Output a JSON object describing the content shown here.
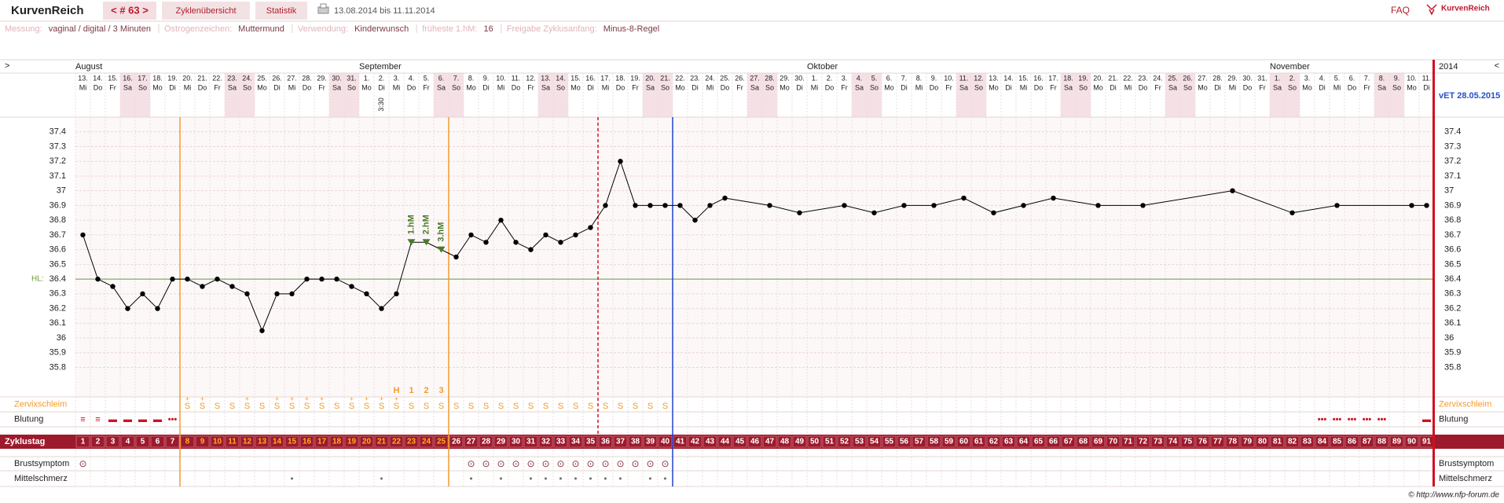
{
  "header": {
    "brand": "KurvenReich",
    "cycle_nav": "< # 63 >",
    "tabs": [
      "Zyklenübersicht",
      "Statistik"
    ],
    "date_range": "13.08.2014 bis 11.11.2014",
    "faq": "FAQ",
    "logo": "KurvenReich"
  },
  "info": [
    {
      "label": "Messung:",
      "value": "vaginal / digital / 3 Minuten"
    },
    {
      "label": "Östrogenzeichen:",
      "value": "Muttermund"
    },
    {
      "label": "Verwendung:",
      "value": "Kinderwunsch"
    },
    {
      "label": "früheste 1.hM:",
      "value": "16"
    },
    {
      "label": "Freigabe Zyklusanfang:",
      "value": "Minus-8-Regel"
    }
  ],
  "chart_data": {
    "type": "line",
    "nav_prev": ">",
    "nav_next": "<",
    "year": "2014",
    "due_date": "vET 28.05.2015",
    "months": [
      {
        "label": "August",
        "day": 1
      },
      {
        "label": "September",
        "day": 20
      },
      {
        "label": "Oktober",
        "day": 50
      },
      {
        "label": "November",
        "day": 81
      }
    ],
    "dates": [
      "13.",
      "14.",
      "15.",
      "16.",
      "17.",
      "18.",
      "19.",
      "20.",
      "21.",
      "22.",
      "23.",
      "24.",
      "25.",
      "26.",
      "27.",
      "28.",
      "29.",
      "30.",
      "31.",
      "1.",
      "2.",
      "3.",
      "4.",
      "5.",
      "6.",
      "7.",
      "8.",
      "9.",
      "10.",
      "11.",
      "12.",
      "13.",
      "14.",
      "15.",
      "16.",
      "17.",
      "18.",
      "19.",
      "20.",
      "21.",
      "22.",
      "23.",
      "24.",
      "25.",
      "26.",
      "27.",
      "28.",
      "29.",
      "30.",
      "1.",
      "2.",
      "3.",
      "4.",
      "5.",
      "6.",
      "7.",
      "8.",
      "9.",
      "10.",
      "11.",
      "12.",
      "13.",
      "14.",
      "15.",
      "16.",
      "17.",
      "18.",
      "19.",
      "20.",
      "21.",
      "22.",
      "23.",
      "24.",
      "25.",
      "26.",
      "27.",
      "28.",
      "29.",
      "30.",
      "31.",
      "1.",
      "2.",
      "3.",
      "4.",
      "5.",
      "6.",
      "7.",
      "8.",
      "9.",
      "10.",
      "11."
    ],
    "weekdays": [
      "Mi",
      "Do",
      "Fr",
      "Sa",
      "So",
      "Mo",
      "Di",
      "Mi",
      "Do",
      "Fr",
      "Sa",
      "So",
      "Mo",
      "Di",
      "Mi",
      "Do",
      "Fr",
      "Sa",
      "So",
      "Mo",
      "Di",
      "Mi",
      "Do",
      "Fr",
      "Sa",
      "So",
      "Mo",
      "Di",
      "Mi",
      "Do",
      "Fr",
      "Sa",
      "So",
      "Mo",
      "Di",
      "Mi",
      "Do",
      "Fr",
      "Sa",
      "So",
      "Mo",
      "Di",
      "Mi",
      "Do",
      "Fr",
      "Sa",
      "So",
      "Mo",
      "Di",
      "Mi",
      "Do",
      "Fr",
      "Sa",
      "So",
      "Mo",
      "Di",
      "Mi",
      "Do",
      "Fr",
      "Sa",
      "So",
      "Mo",
      "Di",
      "Mi",
      "Do",
      "Fr",
      "Sa",
      "So",
      "Mo",
      "Di",
      "Mi",
      "Do",
      "Fr",
      "Sa",
      "So",
      "Mo",
      "Di",
      "Mi",
      "Do",
      "Fr",
      "Sa",
      "So",
      "Mo",
      "Di",
      "Mi",
      "Do",
      "Fr",
      "Sa",
      "So",
      "Mo",
      "Di"
    ],
    "weekend_days": [
      4,
      5,
      11,
      12,
      18,
      19,
      25,
      26,
      32,
      33,
      39,
      40,
      46,
      47,
      53,
      54,
      60,
      61,
      67,
      68,
      74,
      75,
      81,
      82,
      88,
      89
    ],
    "time_notes": [
      {
        "day": 21,
        "label": "3:30"
      }
    ],
    "ylim": [
      35.6,
      37.5
    ],
    "yticks": [
      35.8,
      35.9,
      36,
      36.1,
      36.2,
      36.3,
      36.4,
      36.5,
      36.6,
      36.7,
      36.8,
      36.9,
      37,
      37.1,
      37.2,
      37.3,
      37.4
    ],
    "grid": true,
    "temperature": {
      "color": "#000000",
      "x": [
        1,
        2,
        3,
        4,
        5,
        6,
        7,
        8,
        9,
        10,
        11,
        12,
        13,
        14,
        15,
        16,
        17,
        18,
        19,
        20,
        21,
        22,
        23,
        24,
        25,
        26,
        27,
        28,
        29,
        30,
        31,
        32,
        33,
        34,
        35,
        36,
        37,
        38,
        39,
        40,
        41,
        42,
        43,
        44,
        47,
        49,
        52,
        54,
        56,
        58,
        60,
        62,
        64,
        66,
        69,
        72,
        78,
        82,
        85,
        90,
        91
      ],
      "values": [
        36.7,
        36.4,
        36.35,
        36.2,
        36.3,
        36.2,
        36.4,
        36.4,
        36.35,
        36.4,
        36.35,
        36.3,
        36.05,
        36.3,
        36.3,
        36.4,
        36.4,
        36.4,
        36.35,
        36.3,
        36.2,
        36.3,
        36.65,
        36.65,
        36.6,
        36.55,
        36.7,
        36.65,
        36.8,
        36.65,
        36.6,
        36.7,
        36.65,
        36.7,
        36.75,
        36.9,
        37.2,
        36.9,
        36.9,
        36.9,
        36.9,
        36.8,
        36.9,
        36.95,
        36.9,
        36.85,
        36.9,
        36.85,
        36.9,
        36.9,
        36.95,
        36.85,
        36.9,
        36.95,
        36.9,
        36.9,
        37.0,
        36.85,
        36.9,
        36.9,
        36.9
      ]
    },
    "cover_line": {
      "label": "HL:",
      "value": 36.4,
      "color": "#6a9a3a"
    },
    "high_measurements": [
      {
        "day": 23,
        "label": "1.hM"
      },
      {
        "day": 24,
        "label": "2.hM"
      },
      {
        "day": 25,
        "label": "3.hM"
      }
    ],
    "peak_labels": [
      {
        "day": 22,
        "label": "H"
      },
      {
        "day": 23,
        "label": "1"
      },
      {
        "day": 24,
        "label": "2"
      },
      {
        "day": 25,
        "label": "3"
      }
    ],
    "fertile_start_day": 8,
    "fertile_end_day": 25,
    "evaluation_day": 35,
    "today_day": 40,
    "rows": {
      "cervix": {
        "label": "Zervixschleim",
        "days": [
          8,
          9,
          10,
          11,
          12,
          13,
          14,
          15,
          16,
          17,
          18,
          19,
          20,
          21,
          22,
          23,
          24,
          25,
          26,
          27,
          28,
          29,
          30,
          31,
          32,
          33,
          34,
          35,
          36,
          37,
          38,
          39,
          40
        ],
        "letters": [
          "S",
          "S",
          "S",
          "S",
          "S",
          "S",
          "S",
          "S",
          "S",
          "S",
          "S",
          "S",
          "S",
          "S",
          "S",
          "S",
          "S",
          "S",
          "S",
          "S",
          "S",
          "S",
          "S",
          "S",
          "S",
          "S",
          "S",
          "S",
          "S",
          "S",
          "S",
          "S",
          "S"
        ],
        "signs": [
          "+",
          "+",
          null,
          null,
          "+",
          null,
          "+",
          "+",
          "+",
          "+",
          null,
          "+",
          "+",
          "+",
          "+",
          null,
          null,
          null,
          null,
          null,
          null,
          null,
          null,
          null,
          null,
          null,
          null,
          null,
          null,
          null,
          null,
          null,
          null
        ]
      },
      "bleeding": {
        "label": "Blutung",
        "days": [
          1,
          2,
          3,
          4,
          5,
          6,
          7,
          84,
          85,
          86,
          87,
          88,
          91
        ],
        "symbols": [
          "≡",
          "≡",
          "▬",
          "▬",
          "▬",
          "▬",
          "•••",
          "•••",
          "•••",
          "•••",
          "•••",
          "•••",
          "▬"
        ]
      },
      "cycle_day": {
        "label": "Zyklustag",
        "values": [
          1,
          2,
          3,
          4,
          5,
          6,
          7,
          8,
          9,
          10,
          11,
          12,
          13,
          14,
          15,
          16,
          17,
          18,
          19,
          20,
          21,
          22,
          23,
          24,
          25,
          26,
          27,
          28,
          29,
          30,
          31,
          32,
          33,
          34,
          35,
          36,
          37,
          38,
          39,
          40,
          41,
          42,
          43,
          44,
          45,
          46,
          47,
          48,
          49,
          50,
          51,
          52,
          53,
          54,
          55,
          56,
          57,
          58,
          59,
          60,
          61,
          62,
          63,
          64,
          65,
          66,
          67,
          68,
          69,
          70,
          71,
          72,
          73,
          74,
          75,
          76,
          77,
          78,
          79,
          80,
          81,
          82,
          83,
          84,
          85,
          86,
          87,
          88,
          89,
          90,
          91
        ]
      },
      "breast": {
        "label": "Brustsymptom",
        "days": [
          1,
          27,
          28,
          29,
          30,
          31,
          32,
          33,
          34,
          35,
          36,
          37,
          38,
          39,
          40
        ],
        "symbol": "⊙"
      },
      "midpain": {
        "label": "Mittelschmerz",
        "days": [
          15,
          21,
          27,
          29,
          31,
          32,
          33,
          34,
          35,
          36,
          37,
          39,
          40
        ],
        "symbol": "•"
      }
    }
  },
  "footer": "© http://www.nfp-forum.de"
}
